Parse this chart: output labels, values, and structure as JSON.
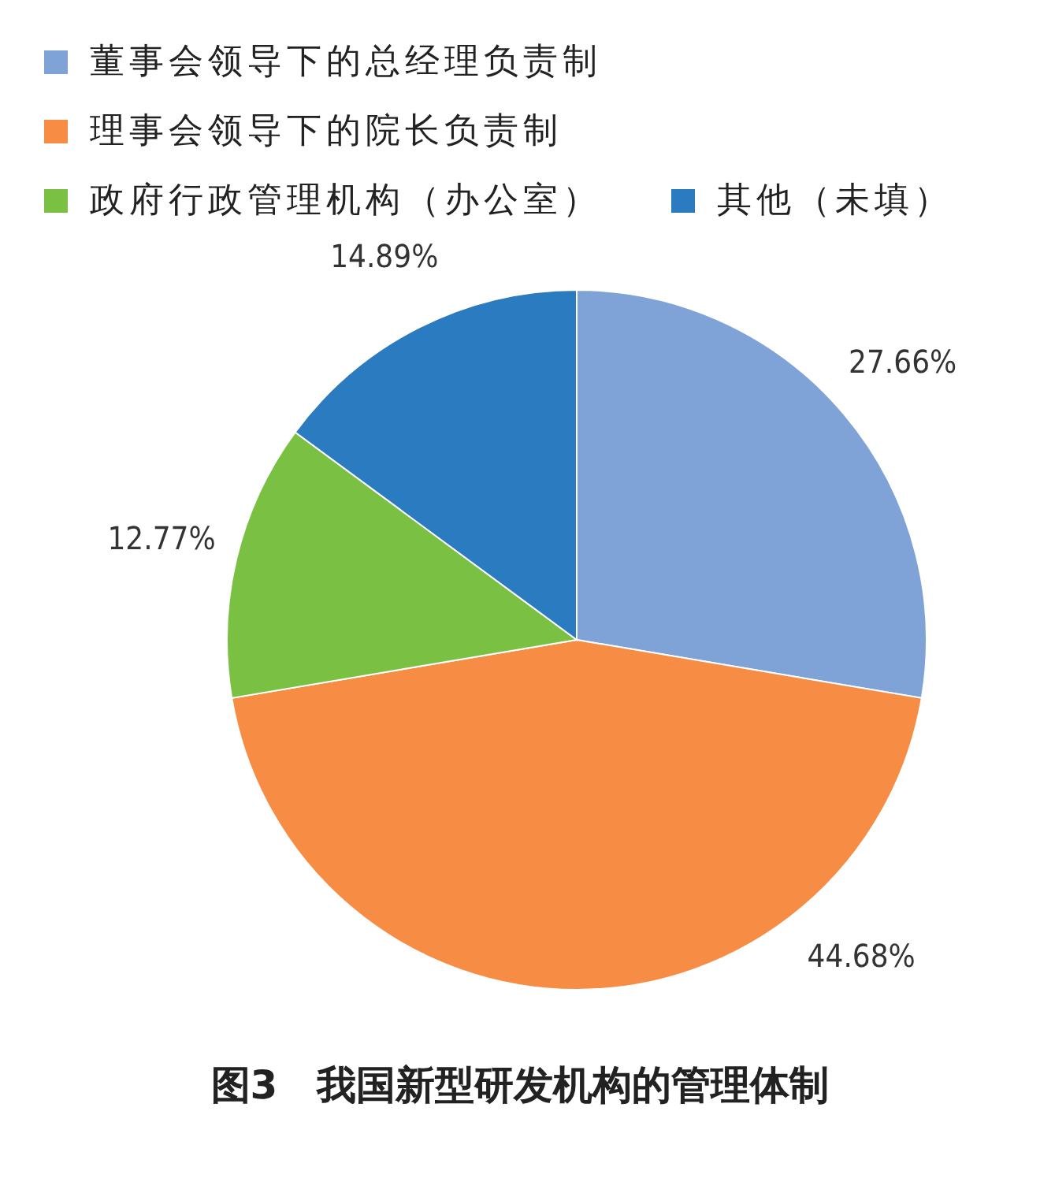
{
  "chart_data": {
    "type": "pie",
    "title": "图3　我国新型研发机构的管理体制",
    "categories": [
      "董事会领导下的总经理负责制",
      "理事会领导下的院长负责制",
      "政府行政管理机构（办公室）",
      "其他（未填）"
    ],
    "values": [
      27.66,
      44.68,
      12.77,
      14.89
    ],
    "value_labels": [
      "27.66%",
      "44.68%",
      "12.77%",
      "14.89%"
    ],
    "colors": [
      "#7fa3d6",
      "#f78d45",
      "#7ac143",
      "#2b7bc0"
    ],
    "legend": "top"
  }
}
